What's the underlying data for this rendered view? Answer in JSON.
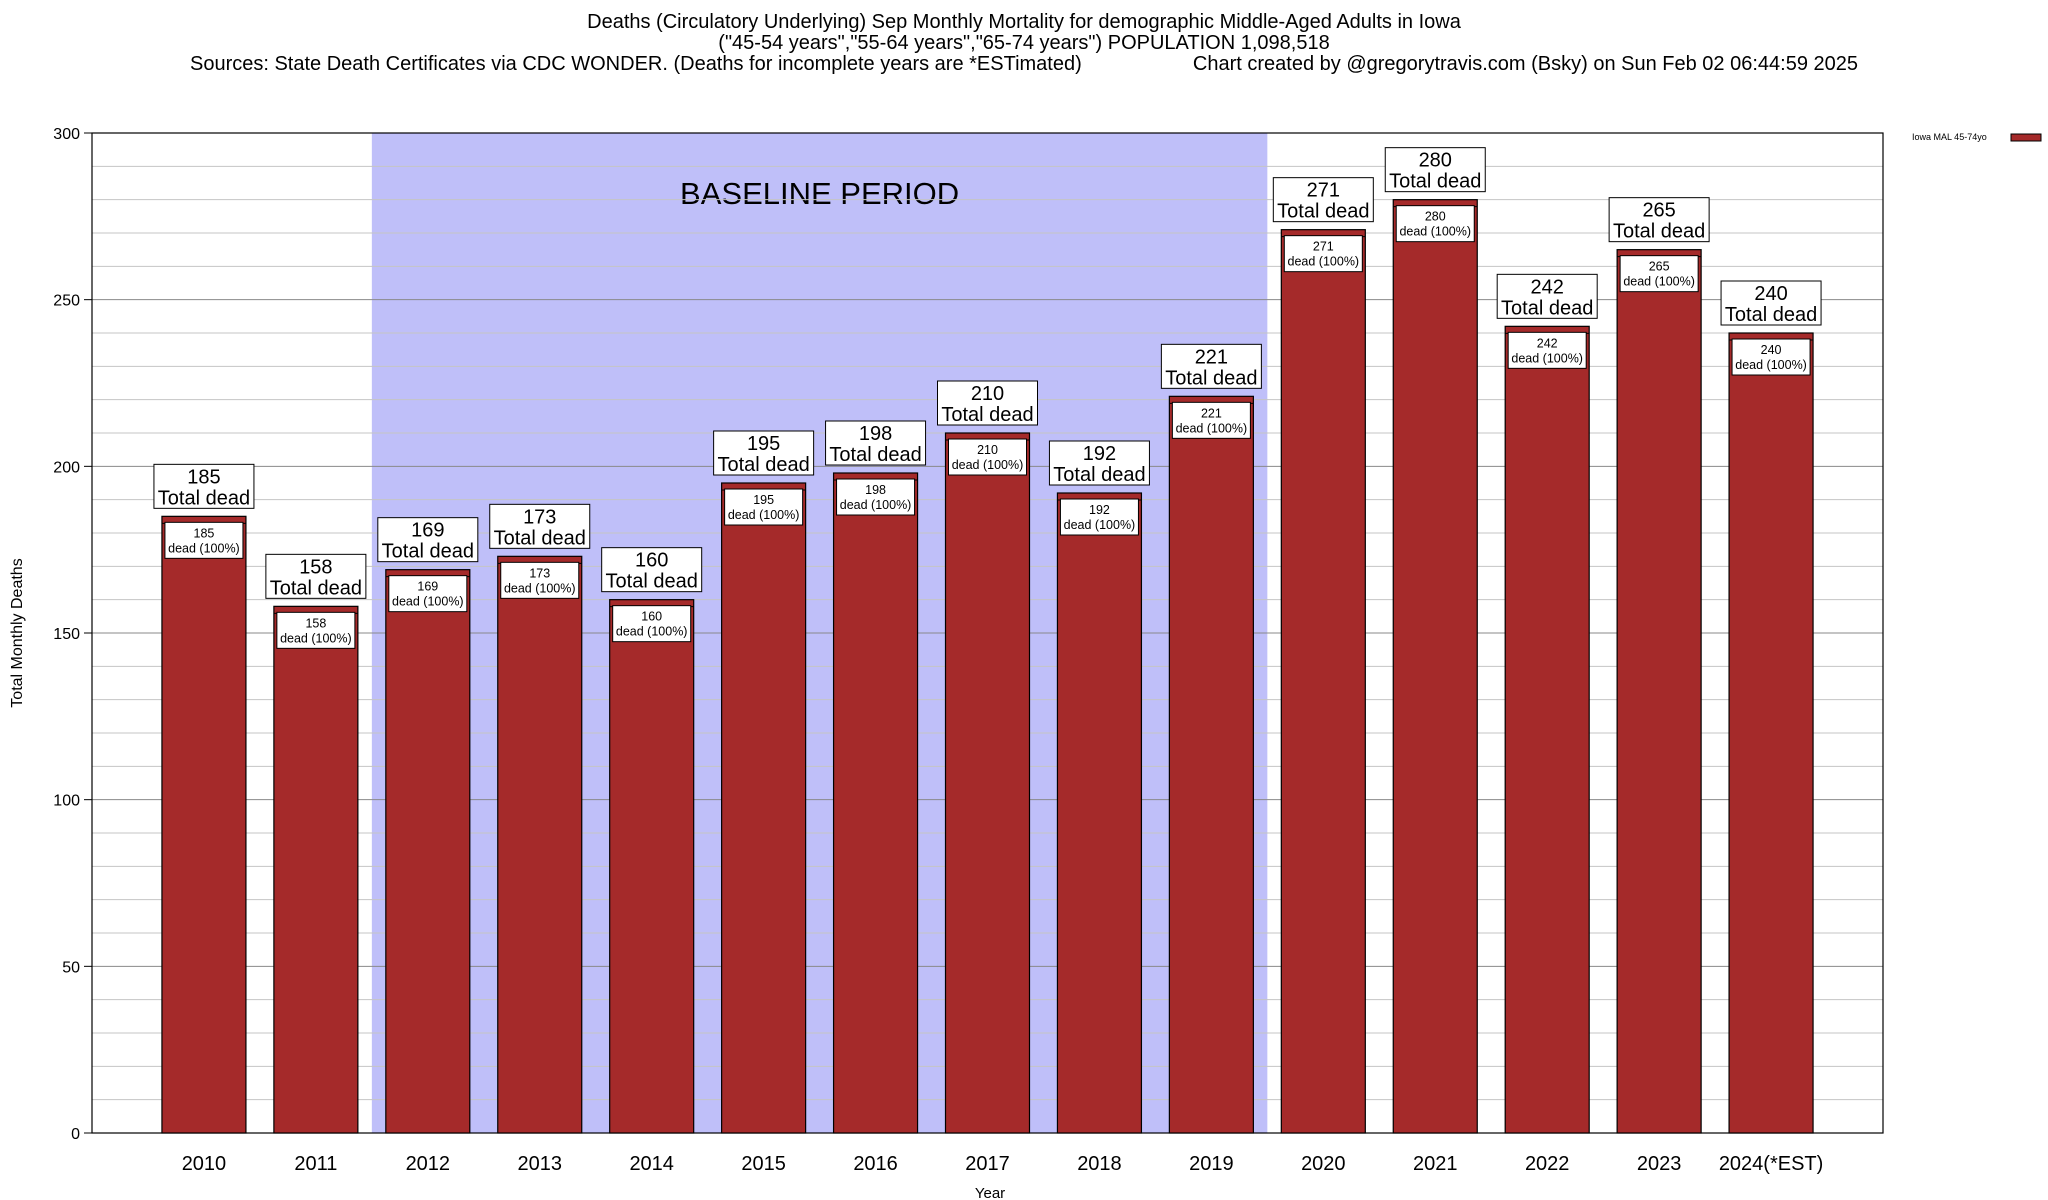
{
  "chart_data": {
    "type": "bar",
    "title_lines": [
      "Deaths (Circulatory Underlying) Sep Monthly Mortality for demographic Middle-Aged Adults in Iowa",
      "(\"45-54 years\",\"55-64 years\",\"65-74 years\") POPULATION 1,098,518"
    ],
    "sources_text": "Sources: State Death Certificates via CDC WONDER. (Deaths for incomplete years are *ESTimated)",
    "credit_text": "Chart created by @gregorytravis.com (Bsky) on Sun Feb 02 06:44:59 2025",
    "xlabel": "Year",
    "ylabel": "Total Monthly Deaths",
    "ylim": [
      0,
      300
    ],
    "yticks": [
      0,
      50,
      100,
      150,
      200,
      250,
      300
    ],
    "grid": true,
    "categories": [
      "2010",
      "2011",
      "2012",
      "2013",
      "2014",
      "2015",
      "2016",
      "2017",
      "2018",
      "2019",
      "2020",
      "2021",
      "2022",
      "2023",
      "2024(*EST)"
    ],
    "series": [
      {
        "name": "Iowa MAL 45-74yo",
        "color": "#a52a2a",
        "values": [
          185,
          158,
          169,
          173,
          160,
          195,
          198,
          210,
          192,
          221,
          271,
          280,
          242,
          265,
          240
        ]
      }
    ],
    "label_total_text": "Total dead",
    "label_dead_text": "dead (100%)",
    "baseline": {
      "label": "BASELINE PERIOD",
      "start_category": "2012",
      "end_category": "2019",
      "color": "#bfbff9"
    },
    "legend_position": "top-right"
  }
}
